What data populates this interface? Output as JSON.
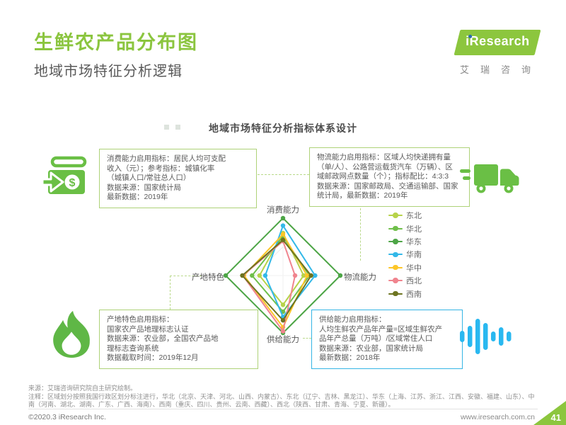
{
  "page": {
    "title": "生鲜农产品分布图",
    "subtitle": "地域市场特征分析逻辑",
    "page_number": "41"
  },
  "logo": {
    "brand": "iResearch",
    "brand_cn": "艾瑞咨询"
  },
  "colors": {
    "accent_green": "#8cc63e",
    "box_green_border": "#aed278",
    "box_blue_border": "#35b5e5",
    "icon_green": "#6abf45",
    "icon_blue": "#29b8f0"
  },
  "icons": {
    "money": "money-in-icon",
    "truck": "delivery-truck-icon",
    "flame": "flame-icon",
    "audio": "audio-wave-icon"
  },
  "boxes": {
    "consumption": "消费能力启用指标：居民人均可支配\n收入（元）；参考指标：城镇化率\n（城镇人口/常驻总人口）\n数据来源：国家统计局\n最新数据：2019年",
    "logistics": "物流能力启用指标：区域人均快递拥有量\n（单/人）、公路营运载货汽车（万辆）、区\n域邮政网点数量（个）；指标配比：4:3:3\n数据来源：国家邮政局、交通运输部、国家\n统计局，最新数据：2019年",
    "origin": "产地特色启用指标：\n国家农产品地理标志认证\n数据来源：农业部，全国农产品地\n理标志查询系统\n数据截取时间：2019年12月",
    "supply": "供给能力启用指标：\n人均生鲜农产品年产量=区域生鲜农产\n品年产总量（万吨）/区域常住人口\n数据来源：农业部，国家统计局\n最新数据：2018年"
  },
  "chart_data": {
    "type": "radar",
    "title": "地域市场特征分析指标体系设计",
    "axes": [
      "消费能力",
      "物流能力",
      "供给能力",
      "产地特色"
    ],
    "range": [
      0,
      1
    ],
    "grid": "diamond",
    "legend_position": "right",
    "series": [
      {
        "name": "东北",
        "color": "#b7d34a",
        "values": [
          0.74,
          0.36,
          0.51,
          0.41
        ]
      },
      {
        "name": "华北",
        "color": "#6fbf4a",
        "values": [
          0.68,
          0.46,
          0.63,
          0.54
        ]
      },
      {
        "name": "华东",
        "color": "#4da546",
        "values": [
          1.0,
          1.0,
          1.0,
          1.0
        ]
      },
      {
        "name": "华南",
        "color": "#33b8e8",
        "values": [
          0.87,
          0.56,
          0.72,
          0.31
        ]
      },
      {
        "name": "华中",
        "color": "#fdc628",
        "values": [
          0.72,
          0.42,
          0.9,
          0.68
        ]
      },
      {
        "name": "西北",
        "color": "#f0848e",
        "values": [
          0.6,
          0.21,
          0.97,
          0.7
        ]
      },
      {
        "name": "西南",
        "color": "#6d7420",
        "values": [
          0.62,
          0.49,
          0.78,
          0.71
        ]
      }
    ]
  },
  "footer": {
    "source": "来源：艾瑞咨询研究院自主研究绘制。",
    "note": "注释：区域划分按照我国行政区划分标注进行，华北（北京、天津、河北、山西、内蒙古）、东北（辽宁、吉林、黑龙江）、华东（上海、江苏、浙江、江西、安徽、福建、山东）、中南（河南、湖北、湖南、广东、广西、海南）、西南（重庆、四川、贵州、云南、西藏）、西北（陕西、甘肃、青海、宁夏、新疆）。",
    "copyright": "©2020.3 iResearch Inc.",
    "website": "www.iresearch.com.cn"
  }
}
